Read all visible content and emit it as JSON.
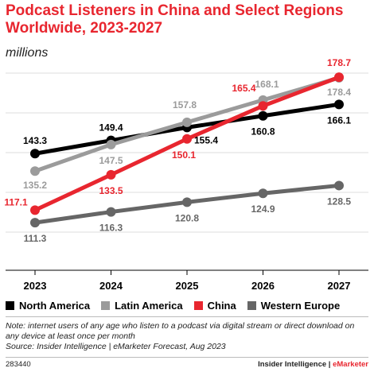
{
  "header": {
    "title": "Podcast Listeners in China and Select Regions Worldwide, 2023-2027",
    "subtitle": "millions"
  },
  "chart_data": {
    "type": "line",
    "title": "Podcast Listeners in China and Select Regions Worldwide, 2023-2027",
    "subtitle": "millions",
    "xlabel": "",
    "ylabel": "",
    "categories": [
      "2023",
      "2024",
      "2025",
      "2026",
      "2027"
    ],
    "ylim": [
      90,
      185
    ],
    "grid": "horizontal",
    "legend_position": "bottom",
    "series": [
      {
        "name": "North America",
        "color": "#000000",
        "values": [
          143.3,
          149.4,
          155.4,
          160.8,
          166.1
        ],
        "labels": [
          "143.3",
          "149.4",
          "155.4",
          "160.8",
          "166.1"
        ]
      },
      {
        "name": "Latin America",
        "color": "#9b9b9b",
        "values": [
          135.2,
          147.5,
          157.8,
          168.1,
          178.4
        ],
        "labels": [
          "135.2",
          "147.5",
          "157.8",
          "168.1",
          "178.4"
        ]
      },
      {
        "name": "China",
        "color": "#e8262f",
        "values": [
          117.1,
          133.5,
          150.1,
          165.4,
          178.7
        ],
        "labels": [
          "117.1",
          "133.5",
          "150.1",
          "165.4",
          "178.7"
        ]
      },
      {
        "name": "Western Europe",
        "color": "#666666",
        "values": [
          111.3,
          116.3,
          120.8,
          124.9,
          128.5
        ],
        "labels": [
          "111.3",
          "116.3",
          "120.8",
          "124.9",
          "128.5"
        ]
      }
    ]
  },
  "note": "Note: internet users of any age who listen to a podcast via digital stream or direct download on any device at least once per month",
  "source": "Source: Insider Intelligence | eMarketer Forecast, Aug 2023",
  "footer": {
    "chart_id": "283440",
    "brand_part1": "Insider Intelligence",
    "brand_separator": " | ",
    "brand_part2": "eMarketer"
  }
}
